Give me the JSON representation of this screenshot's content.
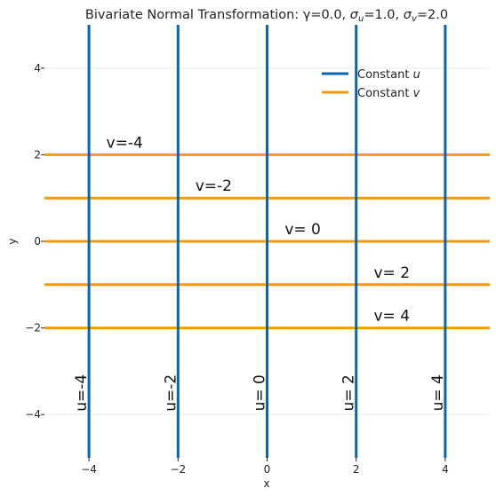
{
  "chart_data": {
    "type": "line",
    "title_prefix": "Bivariate Normal Transformation: γ=0.0, ",
    "title_su": "σ",
    "title_su_sub": "u",
    "title_su_val": "=1.0, ",
    "title_sv": "σ",
    "title_sv_sub": "v",
    "title_sv_val": "=2.0",
    "xlabel": "x",
    "ylabel": "y",
    "xlim": [
      -5,
      5
    ],
    "ylim": [
      -5,
      5
    ],
    "xticks": [
      -4,
      -2,
      0,
      2,
      4
    ],
    "yticks": [
      -4,
      -2,
      0,
      2,
      4
    ],
    "xtick_labels": [
      "−4",
      "−2",
      "0",
      "2",
      "4"
    ],
    "ytick_labels": [
      "−4",
      "−2",
      "0",
      "2",
      "4"
    ],
    "grid": true,
    "legend_position": "top-right",
    "colors": {
      "u": "#0a64b0",
      "v": "#f59a0c",
      "grid": "#e6e6e6"
    },
    "u_lines": [
      {
        "x": -4,
        "label": "u=-4"
      },
      {
        "x": -2,
        "label": "u=-2"
      },
      {
        "x": 0,
        "label": "u= 0"
      },
      {
        "x": 2,
        "label": "u= 2"
      },
      {
        "x": 4,
        "label": "u= 4"
      }
    ],
    "v_lines": [
      {
        "y": 2,
        "label": "v=-4",
        "label_x": -3.2
      },
      {
        "y": 1,
        "label": "v=-2",
        "label_x": -1.2
      },
      {
        "y": 0,
        "label": "v= 0",
        "label_x": 0.8
      },
      {
        "y": -1,
        "label": "v= 2",
        "label_x": 2.8
      },
      {
        "y": -2,
        "label": "v= 4",
        "label_x": 2.8
      }
    ],
    "legend": [
      {
        "name_prefix": "Constant ",
        "name_var": "u",
        "series": "u"
      },
      {
        "name_prefix": "Constant ",
        "name_var": "v",
        "series": "v"
      }
    ]
  }
}
